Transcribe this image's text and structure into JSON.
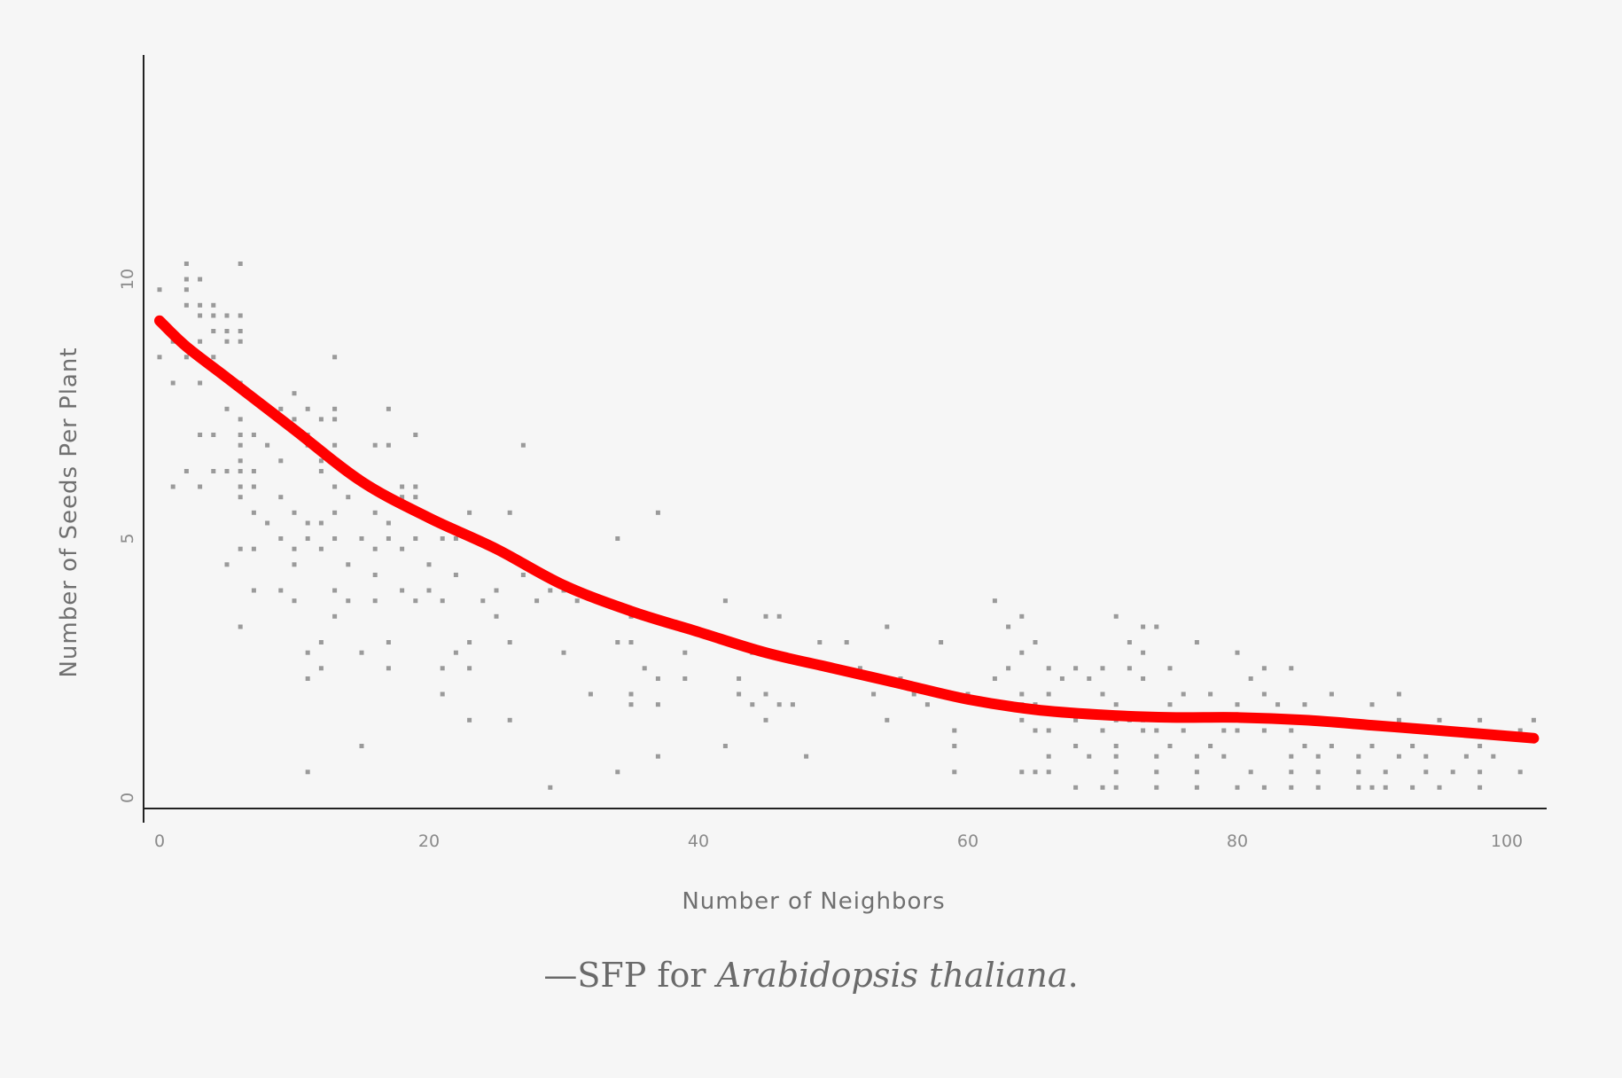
{
  "chart_data": {
    "type": "scatter",
    "title": "",
    "xlabel": "Number of Neighbors",
    "ylabel": "Number of Seeds Per Plant",
    "xlim": [
      -2,
      104
    ],
    "ylim": [
      -0.2,
      10.8
    ],
    "x_ticks": [
      {
        "value": 0,
        "label": "0"
      },
      {
        "value": 20,
        "label": "20"
      },
      {
        "value": 40,
        "label": "40"
      },
      {
        "value": 60,
        "label": "60"
      },
      {
        "value": 80,
        "label": "80"
      },
      {
        "value": 100,
        "label": "100"
      }
    ],
    "y_ticks": [
      {
        "value": 0,
        "label": "0"
      },
      {
        "value": 5,
        "label": "5"
      },
      {
        "value": 10,
        "label": "10"
      }
    ],
    "grid": false,
    "series": [
      {
        "type": "scatter",
        "points": [
          [
            2,
            10.3
          ],
          [
            6,
            10.3
          ],
          [
            2,
            10
          ],
          [
            3,
            10
          ],
          [
            0,
            9.8
          ],
          [
            2,
            9.8
          ],
          [
            2,
            9.5
          ],
          [
            3,
            9.5
          ],
          [
            4,
            9.5
          ],
          [
            3,
            9.3
          ],
          [
            4,
            9.3
          ],
          [
            5,
            9.3
          ],
          [
            6,
            9.3
          ],
          [
            4,
            9
          ],
          [
            5,
            9
          ],
          [
            6,
            9
          ],
          [
            1,
            8.8
          ],
          [
            3,
            8.8
          ],
          [
            5,
            8.8
          ],
          [
            6,
            8.8
          ],
          [
            0,
            8.5
          ],
          [
            2,
            8.5
          ],
          [
            4,
            8.5
          ],
          [
            13,
            8.5
          ],
          [
            1,
            8
          ],
          [
            3,
            8
          ],
          [
            6,
            8
          ],
          [
            10,
            7.8
          ],
          [
            5,
            7.5
          ],
          [
            8,
            7.5
          ],
          [
            9,
            7.5
          ],
          [
            11,
            7.5
          ],
          [
            13,
            7.5
          ],
          [
            17,
            7.5
          ],
          [
            6,
            7.3
          ],
          [
            9,
            7.3
          ],
          [
            10,
            7.3
          ],
          [
            12,
            7.3
          ],
          [
            13,
            7.3
          ],
          [
            3,
            7
          ],
          [
            4,
            7
          ],
          [
            6,
            7
          ],
          [
            7,
            7
          ],
          [
            11,
            7
          ],
          [
            19,
            7
          ],
          [
            6,
            6.8
          ],
          [
            8,
            6.8
          ],
          [
            11,
            6.8
          ],
          [
            13,
            6.8
          ],
          [
            16,
            6.8
          ],
          [
            17,
            6.8
          ],
          [
            27,
            6.8
          ],
          [
            6,
            6.5
          ],
          [
            9,
            6.5
          ],
          [
            12,
            6.5
          ],
          [
            2,
            6.3
          ],
          [
            4,
            6.3
          ],
          [
            5,
            6.3
          ],
          [
            6,
            6.3
          ],
          [
            7,
            6.3
          ],
          [
            12,
            6.3
          ],
          [
            14,
            6.3
          ],
          [
            1,
            6
          ],
          [
            3,
            6
          ],
          [
            6,
            6
          ],
          [
            7,
            6
          ],
          [
            13,
            6
          ],
          [
            18,
            6
          ],
          [
            19,
            6
          ],
          [
            6,
            5.8
          ],
          [
            9,
            5.8
          ],
          [
            14,
            5.8
          ],
          [
            18,
            5.8
          ],
          [
            19,
            5.8
          ],
          [
            7,
            5.5
          ],
          [
            10,
            5.5
          ],
          [
            13,
            5.5
          ],
          [
            16,
            5.5
          ],
          [
            23,
            5.5
          ],
          [
            26,
            5.5
          ],
          [
            37,
            5.5
          ],
          [
            8,
            5.3
          ],
          [
            11,
            5.3
          ],
          [
            12,
            5.3
          ],
          [
            17,
            5.3
          ],
          [
            21,
            5.3
          ],
          [
            9,
            5
          ],
          [
            11,
            5
          ],
          [
            13,
            5
          ],
          [
            15,
            5
          ],
          [
            17,
            5
          ],
          [
            19,
            5
          ],
          [
            21,
            5
          ],
          [
            22,
            5
          ],
          [
            34,
            5
          ],
          [
            6,
            4.8
          ],
          [
            7,
            4.8
          ],
          [
            10,
            4.8
          ],
          [
            12,
            4.8
          ],
          [
            16,
            4.8
          ],
          [
            18,
            4.8
          ],
          [
            5,
            4.5
          ],
          [
            10,
            4.5
          ],
          [
            14,
            4.5
          ],
          [
            20,
            4.5
          ],
          [
            16,
            4.3
          ],
          [
            22,
            4.3
          ],
          [
            27,
            4.3
          ],
          [
            7,
            4
          ],
          [
            9,
            4
          ],
          [
            13,
            4
          ],
          [
            18,
            4
          ],
          [
            20,
            4
          ],
          [
            25,
            4
          ],
          [
            29,
            4
          ],
          [
            30,
            4
          ],
          [
            10,
            3.8
          ],
          [
            14,
            3.8
          ],
          [
            16,
            3.8
          ],
          [
            19,
            3.8
          ],
          [
            21,
            3.8
          ],
          [
            24,
            3.8
          ],
          [
            28,
            3.8
          ],
          [
            31,
            3.8
          ],
          [
            42,
            3.8
          ],
          [
            62,
            3.8
          ],
          [
            13,
            3.5
          ],
          [
            25,
            3.5
          ],
          [
            35,
            3.5
          ],
          [
            45,
            3.5
          ],
          [
            46,
            3.5
          ],
          [
            64,
            3.5
          ],
          [
            71,
            3.5
          ],
          [
            6,
            3.3
          ],
          [
            38,
            3.3
          ],
          [
            39,
            3.3
          ],
          [
            54,
            3.3
          ],
          [
            63,
            3.3
          ],
          [
            73,
            3.3
          ],
          [
            74,
            3.3
          ],
          [
            12,
            3
          ],
          [
            17,
            3
          ],
          [
            23,
            3
          ],
          [
            26,
            3
          ],
          [
            34,
            3
          ],
          [
            35,
            3
          ],
          [
            49,
            3
          ],
          [
            51,
            3
          ],
          [
            58,
            3
          ],
          [
            65,
            3
          ],
          [
            72,
            3
          ],
          [
            77,
            3
          ],
          [
            11,
            2.8
          ],
          [
            15,
            2.8
          ],
          [
            22,
            2.8
          ],
          [
            30,
            2.8
          ],
          [
            39,
            2.8
          ],
          [
            44,
            2.8
          ],
          [
            64,
            2.8
          ],
          [
            73,
            2.8
          ],
          [
            80,
            2.8
          ],
          [
            12,
            2.5
          ],
          [
            17,
            2.5
          ],
          [
            21,
            2.5
          ],
          [
            23,
            2.5
          ],
          [
            36,
            2.5
          ],
          [
            52,
            2.5
          ],
          [
            63,
            2.5
          ],
          [
            66,
            2.5
          ],
          [
            68,
            2.5
          ],
          [
            70,
            2.5
          ],
          [
            72,
            2.5
          ],
          [
            75,
            2.5
          ],
          [
            82,
            2.5
          ],
          [
            84,
            2.5
          ],
          [
            11,
            2.3
          ],
          [
            37,
            2.3
          ],
          [
            39,
            2.3
          ],
          [
            43,
            2.3
          ],
          [
            55,
            2.3
          ],
          [
            62,
            2.3
          ],
          [
            67,
            2.3
          ],
          [
            69,
            2.3
          ],
          [
            73,
            2.3
          ],
          [
            81,
            2.3
          ],
          [
            21,
            2
          ],
          [
            32,
            2
          ],
          [
            35,
            2
          ],
          [
            43,
            2
          ],
          [
            45,
            2
          ],
          [
            53,
            2
          ],
          [
            56,
            2
          ],
          [
            58,
            2
          ],
          [
            60,
            2
          ],
          [
            64,
            2
          ],
          [
            66,
            2
          ],
          [
            70,
            2
          ],
          [
            76,
            2
          ],
          [
            78,
            2
          ],
          [
            82,
            2
          ],
          [
            87,
            2
          ],
          [
            92,
            2
          ],
          [
            35,
            1.8
          ],
          [
            37,
            1.8
          ],
          [
            44,
            1.8
          ],
          [
            46,
            1.8
          ],
          [
            47,
            1.8
          ],
          [
            57,
            1.8
          ],
          [
            64,
            1.8
          ],
          [
            65,
            1.8
          ],
          [
            71,
            1.8
          ],
          [
            75,
            1.8
          ],
          [
            80,
            1.8
          ],
          [
            83,
            1.8
          ],
          [
            85,
            1.8
          ],
          [
            90,
            1.8
          ],
          [
            23,
            1.5
          ],
          [
            26,
            1.5
          ],
          [
            45,
            1.5
          ],
          [
            54,
            1.5
          ],
          [
            64,
            1.5
          ],
          [
            68,
            1.5
          ],
          [
            71,
            1.5
          ],
          [
            72,
            1.5
          ],
          [
            73,
            1.5
          ],
          [
            75,
            1.5
          ],
          [
            77,
            1.5
          ],
          [
            81,
            1.5
          ],
          [
            87,
            1.5
          ],
          [
            92,
            1.5
          ],
          [
            95,
            1.5
          ],
          [
            98,
            1.5
          ],
          [
            102,
            1.5
          ],
          [
            59,
            1.3
          ],
          [
            65,
            1.3
          ],
          [
            66,
            1.3
          ],
          [
            70,
            1.3
          ],
          [
            73,
            1.3
          ],
          [
            74,
            1.3
          ],
          [
            76,
            1.3
          ],
          [
            79,
            1.3
          ],
          [
            80,
            1.3
          ],
          [
            82,
            1.3
          ],
          [
            84,
            1.3
          ],
          [
            93,
            1.3
          ],
          [
            96,
            1.3
          ],
          [
            101,
            1.3
          ],
          [
            15,
            1
          ],
          [
            42,
            1
          ],
          [
            59,
            1
          ],
          [
            68,
            1
          ],
          [
            71,
            1
          ],
          [
            75,
            1
          ],
          [
            78,
            1
          ],
          [
            85,
            1
          ],
          [
            87,
            1
          ],
          [
            90,
            1
          ],
          [
            93,
            1
          ],
          [
            98,
            1
          ],
          [
            37,
            0.8
          ],
          [
            48,
            0.8
          ],
          [
            66,
            0.8
          ],
          [
            69,
            0.8
          ],
          [
            71,
            0.8
          ],
          [
            74,
            0.8
          ],
          [
            77,
            0.8
          ],
          [
            79,
            0.8
          ],
          [
            84,
            0.8
          ],
          [
            86,
            0.8
          ],
          [
            89,
            0.8
          ],
          [
            92,
            0.8
          ],
          [
            94,
            0.8
          ],
          [
            97,
            0.8
          ],
          [
            99,
            0.8
          ],
          [
            11,
            0.5
          ],
          [
            34,
            0.5
          ],
          [
            59,
            0.5
          ],
          [
            64,
            0.5
          ],
          [
            65,
            0.5
          ],
          [
            66,
            0.5
          ],
          [
            71,
            0.5
          ],
          [
            74,
            0.5
          ],
          [
            77,
            0.5
          ],
          [
            81,
            0.5
          ],
          [
            84,
            0.5
          ],
          [
            86,
            0.5
          ],
          [
            89,
            0.5
          ],
          [
            91,
            0.5
          ],
          [
            94,
            0.5
          ],
          [
            96,
            0.5
          ],
          [
            98,
            0.5
          ],
          [
            101,
            0.5
          ],
          [
            29,
            0.2
          ],
          [
            68,
            0.2
          ],
          [
            70,
            0.2
          ],
          [
            71,
            0.2
          ],
          [
            74,
            0.2
          ],
          [
            77,
            0.2
          ],
          [
            80,
            0.2
          ],
          [
            82,
            0.2
          ],
          [
            84,
            0.2
          ],
          [
            86,
            0.2
          ],
          [
            89,
            0.2
          ],
          [
            90,
            0.2
          ],
          [
            91,
            0.2
          ],
          [
            93,
            0.2
          ],
          [
            95,
            0.2
          ],
          [
            98,
            0.2
          ]
        ]
      },
      {
        "type": "line",
        "color": "#ff0000",
        "points": [
          [
            0,
            9.2
          ],
          [
            2,
            8.7
          ],
          [
            5,
            8.1
          ],
          [
            10,
            7.1
          ],
          [
            15,
            6.1
          ],
          [
            20,
            5.4
          ],
          [
            25,
            4.8
          ],
          [
            30,
            4.1
          ],
          [
            35,
            3.6
          ],
          [
            40,
            3.2
          ],
          [
            45,
            2.8
          ],
          [
            50,
            2.5
          ],
          [
            55,
            2.2
          ],
          [
            60,
            1.9
          ],
          [
            65,
            1.7
          ],
          [
            70,
            1.6
          ],
          [
            75,
            1.55
          ],
          [
            80,
            1.55
          ],
          [
            85,
            1.5
          ],
          [
            90,
            1.4
          ],
          [
            95,
            1.3
          ],
          [
            102,
            1.15
          ]
        ]
      }
    ],
    "caption": {
      "prefix": "—SFP for ",
      "species": "Arabidopsis thaliana",
      "suffix": "."
    }
  }
}
